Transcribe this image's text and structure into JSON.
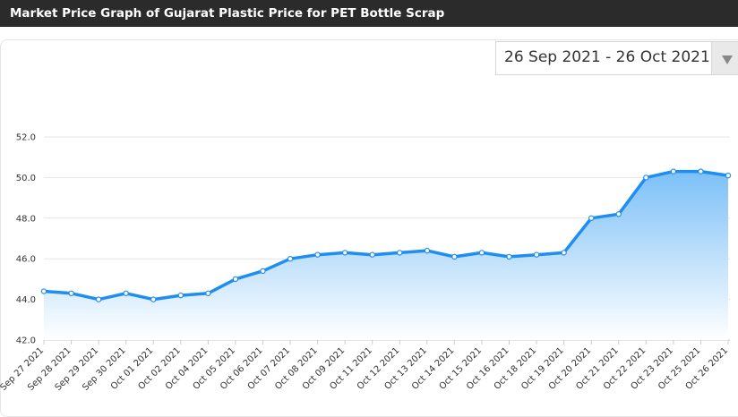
{
  "header": {
    "title": "Market Price Graph of Gujarat Plastic Price for PET Bottle Scrap"
  },
  "date_range": {
    "value": "26 Sep 2021 - 26 Oct 2021"
  },
  "colors": {
    "header_bg": "#2b2b2b",
    "line": "#1f8ef1",
    "area_top": "#7cc0f7",
    "area_bottom": "#ffffff",
    "grid": "#e6e6e6"
  },
  "chart_data": {
    "type": "area",
    "title": "",
    "xlabel": "",
    "ylabel": "",
    "ylim": [
      42.0,
      52.0
    ],
    "yticks": [
      "42.0",
      "44.0",
      "46.0",
      "48.0",
      "50.0",
      "52.0"
    ],
    "grid": true,
    "categories": [
      "Sep 27 2021",
      "Sep 28 2021",
      "Sep 29 2021",
      "Sep 30 2021",
      "Oct 01 2021",
      "Oct 02 2021",
      "Oct 04 2021",
      "Oct 05 2021",
      "Oct 06 2021",
      "Oct 07 2021",
      "Oct 08 2021",
      "Oct 09 2021",
      "Oct 11 2021",
      "Oct 12 2021",
      "Oct 13 2021",
      "Oct 14 2021",
      "Oct 15 2021",
      "Oct 16 2021",
      "Oct 18 2021",
      "Oct 19 2021",
      "Oct 20 2021",
      "Oct 21 2021",
      "Oct 22 2021",
      "Oct 23 2021",
      "Oct 25 2021",
      "Oct 26 2021"
    ],
    "series": [
      {
        "values": [
          44.4,
          44.3,
          44.0,
          44.3,
          44.0,
          44.2,
          44.3,
          45.0,
          45.4,
          46.0,
          46.2,
          46.3,
          46.2,
          46.3,
          46.4,
          46.1,
          46.3,
          46.1,
          46.2,
          46.3,
          48.0,
          48.2,
          50.0,
          50.3,
          50.3,
          50.1
        ]
      }
    ]
  }
}
